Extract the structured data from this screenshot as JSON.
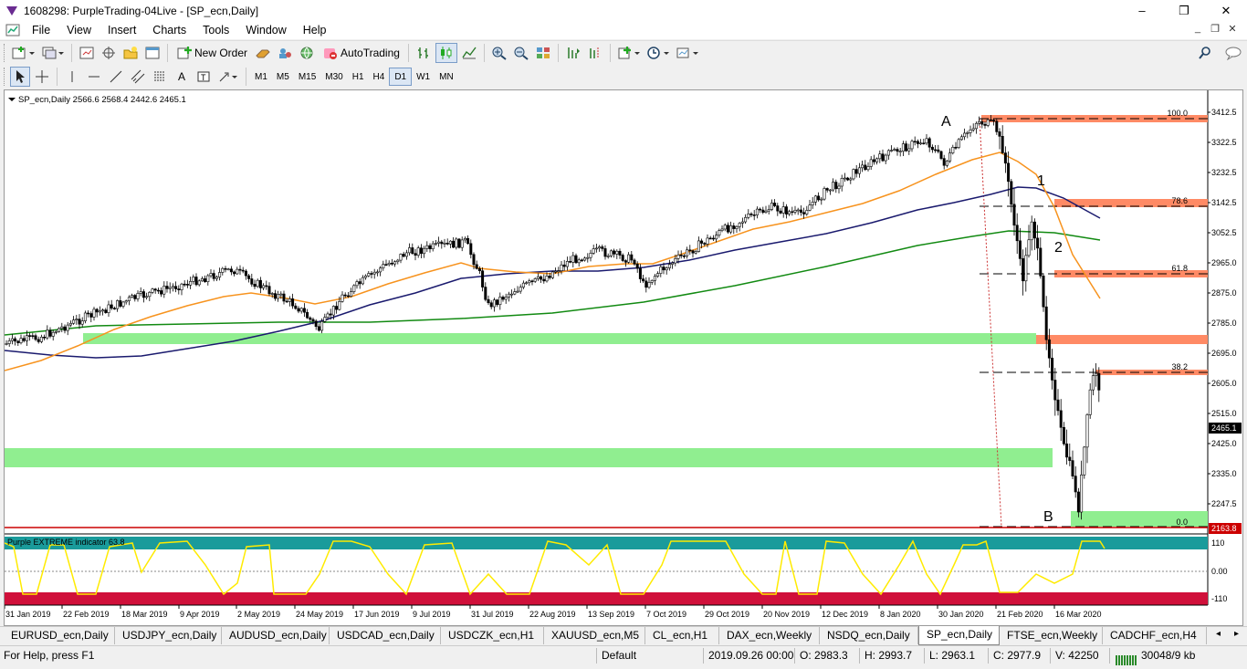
{
  "window": {
    "title": "1608298: PurpleTrading-04Live - [SP_ecn,Daily]"
  },
  "menu": [
    "File",
    "View",
    "Insert",
    "Charts",
    "Tools",
    "Window",
    "Help"
  ],
  "toolbar": {
    "new_order": "New Order",
    "autotrading": "AutoTrading"
  },
  "timeframes": [
    "M1",
    "M5",
    "M15",
    "M30",
    "H1",
    "H4",
    "D1",
    "W1",
    "MN"
  ],
  "active_timeframe": "D1",
  "chart": {
    "info": "SP_ecn,Daily  2566.6 2568.4 2442.6 2465.1",
    "current_price": "2465.1",
    "low_marker": "2163.8",
    "price_labels": [
      "3412.5",
      "3322.5",
      "3232.5",
      "3142.5",
      "3052.5",
      "2965.0",
      "2875.0",
      "2785.0",
      "2695.0",
      "2605.0",
      "2515.0",
      "2425.0",
      "2335.0",
      "2247.5"
    ],
    "date_labels": [
      "31 Jan 2019",
      "22 Feb 2019",
      "18 Mar 2019",
      "9 Apr 2019",
      "2 May 2019",
      "24 May 2019",
      "17 Jun 2019",
      "9 Jul 2019",
      "31 Jul 2019",
      "22 Aug 2019",
      "13 Sep 2019",
      "7 Oct 2019",
      "29 Oct 2019",
      "20 Nov 2019",
      "12 Dec 2019",
      "8 Jan 2020",
      "30 Jan 2020",
      "21 Feb 2020",
      "16 Mar 2020"
    ],
    "fib_levels": [
      "100.0",
      "78.6",
      "61.8",
      "38.2",
      "0.0"
    ],
    "annotations": [
      "A",
      "1",
      "2",
      "B"
    ],
    "ma_colors": {
      "fast": "#f7931e",
      "mid": "#1a1a6e",
      "slow": "#128a12"
    },
    "zone_colors": {
      "support": "#90ee90",
      "resistance": "#ff8a65"
    },
    "indicator": {
      "label": "Purple EXTREME indicator 63.8",
      "levels": [
        "110",
        "0.00",
        "-110"
      ]
    }
  },
  "tabs": [
    "EURUSD_ecn,Daily",
    "USDJPY_ecn,Daily",
    "AUDUSD_ecn,Daily",
    "USDCAD_ecn,Daily",
    "USDCZK_ecn,H1",
    "XAUUSD_ecn,M5",
    "CL_ecn,H1",
    "DAX_ecn,Weekly",
    "NSDQ_ecn,Daily",
    "SP_ecn,Daily",
    "FTSE_ecn,Weekly",
    "CADCHF_ecn,H4"
  ],
  "active_tab": "SP_ecn,Daily",
  "status": {
    "help": "For Help, press F1",
    "profile": "Default",
    "datetime": "2019.09.26 00:00",
    "open": "O: 2983.3",
    "high": "H: 2993.7",
    "low": "L: 2963.1",
    "close": "C: 2977.9",
    "volume": "V: 42250",
    "traffic": "30048/9 kb"
  }
}
